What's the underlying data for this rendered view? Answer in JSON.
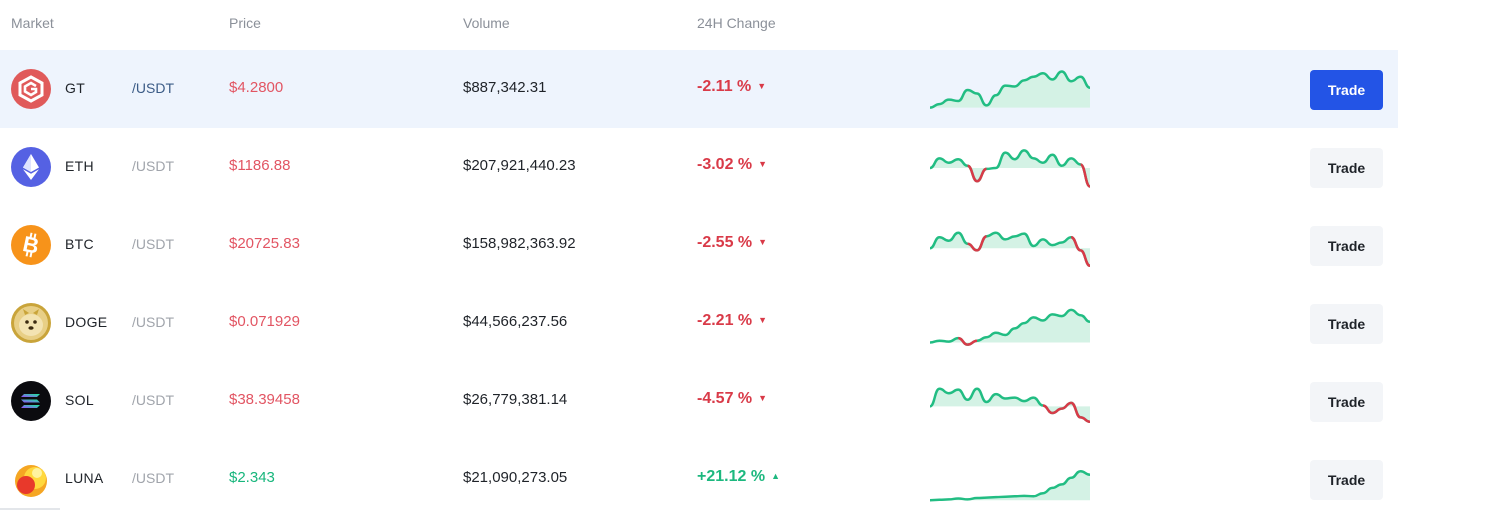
{
  "header": {
    "market": "Market",
    "price": "Price",
    "volume": "Volume",
    "change": "24H Change"
  },
  "rows": [
    {
      "symbol": "GT",
      "quote": "/USDT",
      "price": "$4.2800",
      "volume": "$887,342.31",
      "change": "-2.11 %",
      "direction": "down",
      "icon": "gatetoken-icon",
      "trade_label": "Trade",
      "spark": [
        0.1,
        0.18,
        0.28,
        0.25,
        0.5,
        0.42,
        0.15,
        0.38,
        0.6,
        0.58,
        0.72,
        0.8,
        0.88,
        0.74,
        0.92,
        0.7,
        0.8,
        0.55
      ]
    },
    {
      "symbol": "ETH",
      "quote": "/USDT",
      "price": "$1186.88",
      "volume": "$207,921,440.23",
      "change": "-3.02 %",
      "direction": "down",
      "icon": "ethereum-icon",
      "trade_label": "Trade",
      "spark": [
        0.5,
        0.72,
        0.62,
        0.7,
        0.55,
        0.2,
        0.48,
        0.5,
        0.85,
        0.7,
        0.9,
        0.72,
        0.62,
        0.8,
        0.55,
        0.72,
        0.58,
        0.08
      ]
    },
    {
      "symbol": "BTC",
      "quote": "/USDT",
      "price": "$20725.83",
      "volume": "$158,982,363.92",
      "change": "-2.55 %",
      "direction": "down",
      "icon": "bitcoin-icon",
      "trade_label": "Trade",
      "spark": [
        0.45,
        0.7,
        0.62,
        0.8,
        0.55,
        0.4,
        0.72,
        0.8,
        0.65,
        0.72,
        0.78,
        0.5,
        0.65,
        0.52,
        0.58,
        0.7,
        0.4,
        0.05
      ]
    },
    {
      "symbol": "DOGE",
      "quote": "/USDT",
      "price": "$0.071929",
      "volume": "$44,566,237.56",
      "change": "-2.21 %",
      "direction": "down",
      "icon": "dogecoin-icon",
      "trade_label": "Trade",
      "spark": [
        0.08,
        0.12,
        0.1,
        0.18,
        0.03,
        0.12,
        0.2,
        0.3,
        0.25,
        0.4,
        0.52,
        0.65,
        0.58,
        0.72,
        0.68,
        0.82,
        0.7,
        0.55
      ]
    },
    {
      "symbol": "SOL",
      "quote": "/USDT",
      "price": "$38.39458",
      "volume": "$26,779,381.14",
      "change": "-4.57 %",
      "direction": "down",
      "icon": "solana-icon",
      "trade_label": "Trade",
      "spark": [
        0.4,
        0.8,
        0.7,
        0.78,
        0.55,
        0.8,
        0.5,
        0.68,
        0.58,
        0.6,
        0.52,
        0.6,
        0.42,
        0.25,
        0.35,
        0.48,
        0.15,
        0.05
      ]
    },
    {
      "symbol": "LUNA",
      "quote": "/USDT",
      "price": "$2.343",
      "volume": "$21,090,273.05",
      "change": "+21.12 %",
      "direction": "up",
      "icon": "terra-luna-icon",
      "trade_label": "Trade",
      "spark": [
        0.04,
        0.05,
        0.06,
        0.08,
        0.06,
        0.09,
        0.1,
        0.11,
        0.12,
        0.13,
        0.14,
        0.13,
        0.2,
        0.32,
        0.4,
        0.55,
        0.7,
        0.62
      ]
    }
  ],
  "colors": {
    "accent": "#2354e6",
    "down": "#d93a48",
    "up": "#1db87f",
    "spark_line": "#22bd83",
    "spark_fill": "#d4f2e5",
    "highlight_row": "#eef4fd"
  }
}
